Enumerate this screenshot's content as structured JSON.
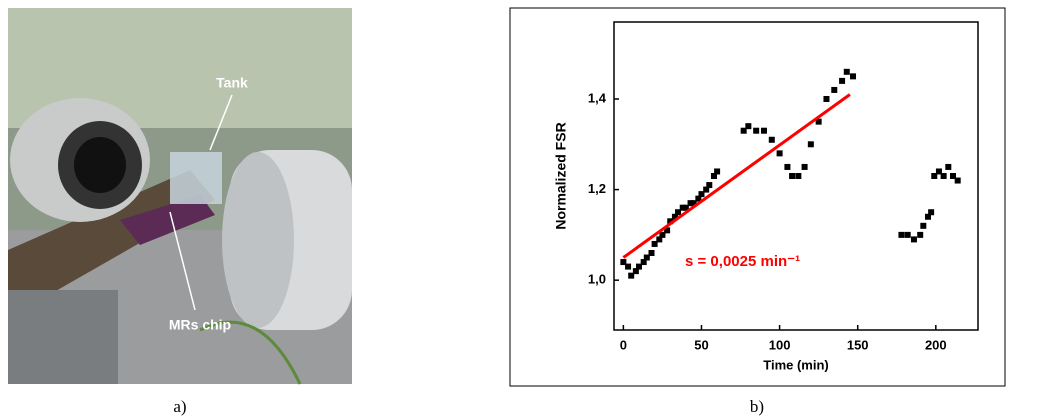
{
  "photo": {
    "tank_label": "Tank",
    "chip_label": "MRs chip",
    "caption": "a)"
  },
  "chart_caption": "b)",
  "chart_data": {
    "type": "scatter",
    "x_label": "Time (min)",
    "y_label": "Normalized FSR",
    "annotation": "s = 0,0025 min⁻¹",
    "color": "#000000",
    "x": [
      0,
      3,
      5,
      8,
      10,
      13,
      15,
      18,
      20,
      23,
      25,
      28,
      30,
      33,
      35,
      38,
      40,
      43,
      45,
      48,
      50,
      53,
      55,
      58,
      60,
      77,
      80,
      85,
      90,
      95,
      100,
      105,
      108,
      112,
      116,
      120,
      125,
      130,
      135,
      140,
      143,
      147,
      178,
      182,
      186,
      190,
      192,
      195,
      197,
      199,
      202,
      205,
      208,
      211,
      214
    ],
    "values": [
      1.04,
      1.03,
      1.01,
      1.02,
      1.03,
      1.04,
      1.05,
      1.06,
      1.08,
      1.09,
      1.1,
      1.11,
      1.13,
      1.14,
      1.15,
      1.16,
      1.16,
      1.17,
      1.17,
      1.18,
      1.19,
      1.2,
      1.21,
      1.23,
      1.24,
      1.33,
      1.34,
      1.33,
      1.33,
      1.31,
      1.28,
      1.25,
      1.23,
      1.23,
      1.25,
      1.3,
      1.35,
      1.4,
      1.42,
      1.44,
      1.46,
      1.45,
      1.1,
      1.1,
      1.09,
      1.1,
      1.12,
      1.14,
      1.15,
      1.23,
      1.24,
      1.23,
      1.25,
      1.23,
      1.22
    ],
    "fit": {
      "x": [
        0,
        145
      ],
      "values": [
        1.05,
        1.41
      ],
      "color": "#ff0000"
    },
    "xlim": [
      -6,
      227
    ],
    "xticks": [
      0,
      50,
      100,
      150,
      200
    ],
    "ylim": [
      0.89,
      1.57
    ],
    "yticks": [
      {
        "value": 1.0,
        "label": "1,0"
      },
      {
        "value": 1.2,
        "label": "1,2"
      },
      {
        "value": 1.4,
        "label": "1,4"
      }
    ]
  }
}
